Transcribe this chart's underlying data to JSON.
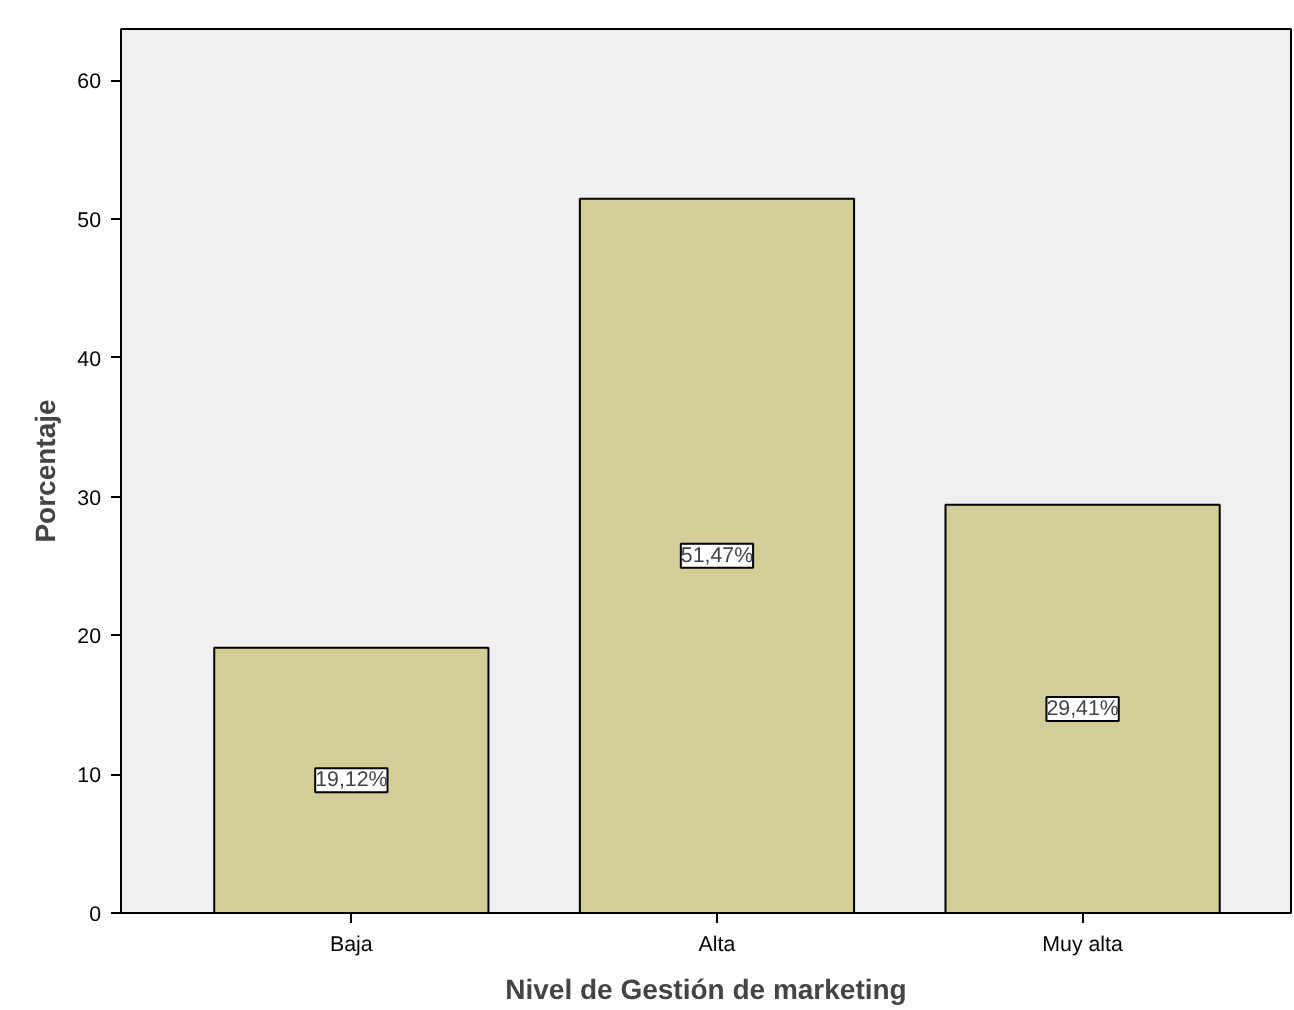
{
  "chart_data": {
    "type": "bar",
    "xlabel": "Nivel de Gestión de marketing",
    "ylabel": "Porcentaje",
    "categories": [
      "Baja",
      "Alta",
      "Muy alta"
    ],
    "values": [
      19.12,
      51.47,
      29.41
    ],
    "value_labels": [
      "19,12%",
      "51,47%",
      "29,41%"
    ],
    "color": "#d3ce97",
    "ylim": [
      0,
      63.7
    ],
    "yticks": [
      0,
      10,
      20,
      30,
      40,
      50,
      60
    ],
    "grid": false
  }
}
